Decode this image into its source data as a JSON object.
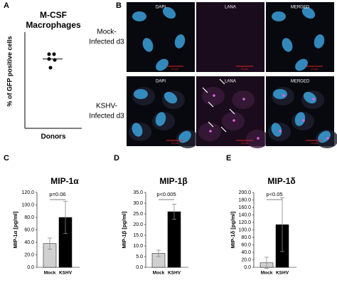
{
  "chart_data": [
    {
      "type": "dot",
      "panel_label": "A",
      "title": [
        "M-CSF",
        "Macrophages"
      ],
      "ylabel": "% of GFP positive cells",
      "xlabel": "Donors",
      "values": [
        77,
        77,
        72,
        71,
        63
      ],
      "mean": 72,
      "color": "#000000",
      "ylim": [
        0,
        100
      ]
    },
    {
      "type": "bar",
      "panel_label": "C",
      "title": "MIP-1α",
      "ylabel": "MIP-1α [pg/ml]",
      "categories": [
        "Mock",
        "KSHV"
      ],
      "values": [
        38,
        80
      ],
      "errors": [
        9,
        26
      ],
      "colors": [
        "#d0d0d0",
        "#000000"
      ],
      "annotation": "p=0.06",
      "ylim": [
        0,
        120
      ],
      "yticks": [
        {
          "value": 0,
          "label": "0.0"
        },
        {
          "value": 20,
          "label": "20.0"
        },
        {
          "value": 40,
          "label": "40.0"
        },
        {
          "value": 60,
          "label": "60.0"
        },
        {
          "value": 80,
          "label": "80.0"
        },
        {
          "value": 100,
          "label": "100.0"
        },
        {
          "value": 120,
          "label": "120.0"
        }
      ]
    },
    {
      "type": "bar",
      "panel_label": "D",
      "title": "MIP-1β",
      "ylabel": "MIP-1β [pg/ml]",
      "categories": [
        "Mock",
        "KSHV"
      ],
      "values": [
        6.5,
        26
      ],
      "errors": [
        1.5,
        3.5
      ],
      "colors": [
        "#d0d0d0",
        "#000000"
      ],
      "annotation": "p<0.005",
      "ylim": [
        0,
        35
      ],
      "yticks": [
        {
          "value": 0,
          "label": "0.0"
        },
        {
          "value": 5,
          "label": "5.0"
        },
        {
          "value": 10,
          "label": "10.0"
        },
        {
          "value": 15,
          "label": "15.0"
        },
        {
          "value": 20,
          "label": "20.0"
        },
        {
          "value": 25,
          "label": "25.0"
        },
        {
          "value": 30,
          "label": "30.0"
        },
        {
          "value": 35,
          "label": "35.0"
        }
      ]
    },
    {
      "type": "bar",
      "panel_label": "E",
      "title": "MIP-1δ",
      "ylabel": "MIP-1δ [pg/ml]",
      "categories": [
        "Mock",
        "KSHV"
      ],
      "values": [
        12,
        114
      ],
      "errors": [
        15,
        72
      ],
      "colors": [
        "#d0d0d0",
        "#000000"
      ],
      "annotation": "p<0.05",
      "ylim": [
        0,
        200
      ],
      "yticks": [
        {
          "value": 0,
          "label": "0.0"
        },
        {
          "value": 20,
          "label": "20.0"
        },
        {
          "value": 40,
          "label": "40.0"
        },
        {
          "value": 60,
          "label": "60.0"
        },
        {
          "value": 80,
          "label": "80.0"
        },
        {
          "value": 100,
          "label": "100.0"
        },
        {
          "value": 120,
          "label": "120.0"
        },
        {
          "value": 140,
          "label": "140.0"
        },
        {
          "value": 160,
          "label": "160.0"
        },
        {
          "value": 180,
          "label": "180.0"
        },
        {
          "value": 200,
          "label": "200.0"
        }
      ]
    }
  ],
  "figure_b": {
    "panel_label": "B",
    "channels": [
      "DAPI",
      "LANA",
      "MERGED"
    ],
    "scale_bar": "20 µm",
    "rows": [
      [
        "Mock-",
        "Infected d3"
      ],
      [
        "KSHV-",
        "Infected d3"
      ]
    ]
  }
}
